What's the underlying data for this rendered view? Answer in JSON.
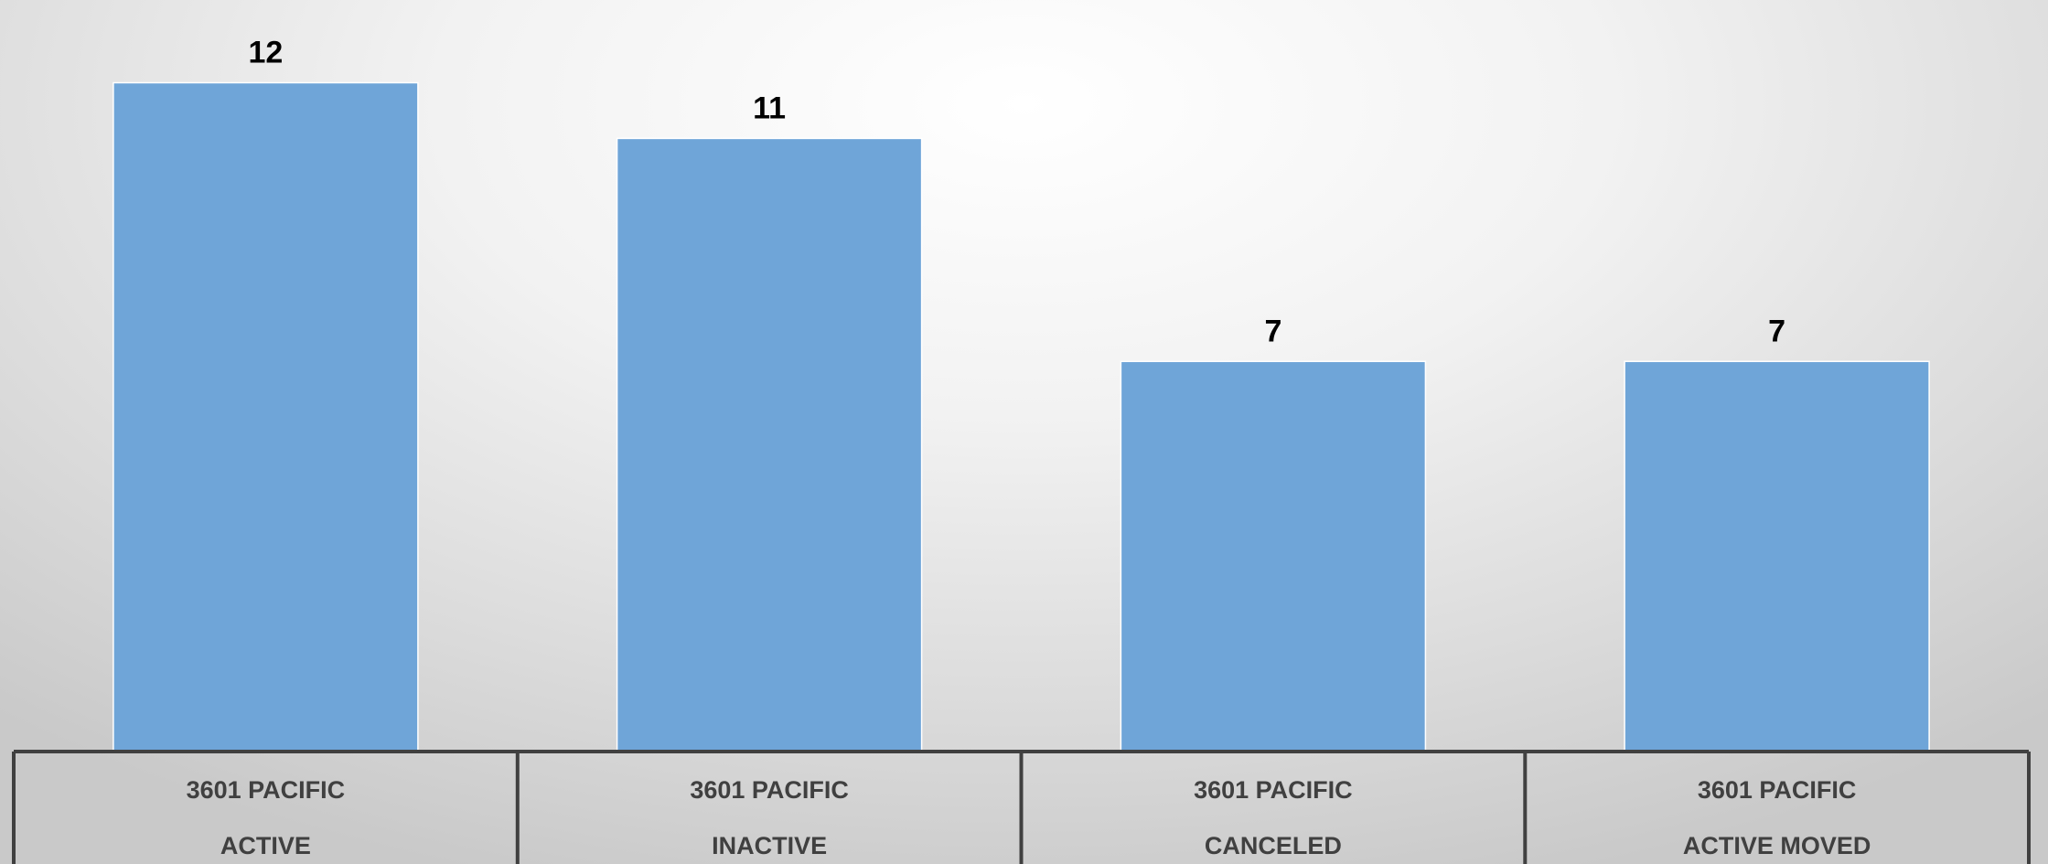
{
  "chart_data": {
    "type": "bar",
    "categories": [
      [
        "3601 PACIFIC",
        "ACTIVE"
      ],
      [
        "3601 PACIFIC",
        "INACTIVE"
      ],
      [
        "3601 PACIFIC",
        "CANCELED"
      ],
      [
        "3601 PACIFIC",
        "ACTIVE MOVED"
      ]
    ],
    "values": [
      12,
      11,
      7,
      7
    ],
    "data_labels": [
      "12",
      "11",
      "7",
      "7"
    ],
    "ylim": [
      0,
      12.5
    ],
    "grid": false,
    "legend": "none",
    "bar_color": "#6fa5d8",
    "title": "",
    "xlabel": "",
    "ylabel": ""
  }
}
